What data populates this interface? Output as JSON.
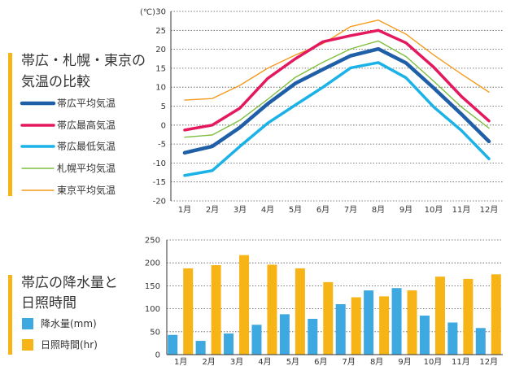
{
  "chart_data": [
    {
      "type": "line",
      "title_lines": [
        "帯広・札幌・東京の",
        "気温の比較"
      ],
      "unit_label": "(℃)",
      "categories": [
        "1月",
        "2月",
        "3月",
        "4月",
        "5月",
        "6月",
        "7月",
        "8月",
        "9月",
        "10月",
        "11月",
        "12月"
      ],
      "ylim": [
        -20,
        30
      ],
      "yticks": [
        -20,
        -15,
        -10,
        -5,
        0,
        5,
        10,
        15,
        20,
        25,
        30
      ],
      "grid": true,
      "legend_position": "left",
      "series": [
        {
          "name": "帯広平均気温",
          "color": "#1f5fa8",
          "values": [
            -7.3,
            -5.6,
            -0.6,
            5.6,
            11.0,
            14.7,
            18.3,
            20.1,
            16.4,
            9.8,
            2.9,
            -4.3
          ]
        },
        {
          "name": "帯広最高気温",
          "color": "#e4185e",
          "values": [
            -1.3,
            0.0,
            4.5,
            12.3,
            17.5,
            22.0,
            23.6,
            25.0,
            21.7,
            15.3,
            7.6,
            1.1
          ]
        },
        {
          "name": "帯広最低気温",
          "color": "#1bb2e8",
          "values": [
            -13.3,
            -12.0,
            -5.6,
            0.5,
            5.3,
            10.0,
            15.1,
            16.5,
            12.5,
            4.8,
            -1.4,
            -8.9
          ]
        },
        {
          "name": "札幌平均気温",
          "color": "#7fbf3f",
          "values": [
            -3.2,
            -2.6,
            1.3,
            6.8,
            12.6,
            16.6,
            20.1,
            22.2,
            18.1,
            11.6,
            4.8,
            -0.8
          ]
        },
        {
          "name": "東京平均気温",
          "color": "#f39c1f",
          "values": [
            6.6,
            7.0,
            10.5,
            15.0,
            18.5,
            21.5,
            26.0,
            27.7,
            24.0,
            18.5,
            13.5,
            8.7
          ]
        }
      ]
    },
    {
      "type": "bar",
      "title_lines": [
        "帯広の降水量と",
        "日照時間"
      ],
      "categories": [
        "1月",
        "2月",
        "3月",
        "4月",
        "5月",
        "6月",
        "7月",
        "8月",
        "9月",
        "10月",
        "11月",
        "12月"
      ],
      "ylim": [
        0,
        250
      ],
      "yticks": [
        0,
        50,
        100,
        150,
        200,
        250
      ],
      "grid": true,
      "legend_position": "left",
      "series": [
        {
          "name": "降水量(mm)",
          "color": "#3ea8e0",
          "values": [
            43,
            30,
            46,
            65,
            88,
            78,
            110,
            140,
            145,
            85,
            70,
            58
          ]
        },
        {
          "name": "日照時間(hr)",
          "color": "#f6b417",
          "values": [
            188,
            195,
            217,
            196,
            188,
            158,
            125,
            127,
            140,
            170,
            165,
            175
          ]
        }
      ]
    }
  ],
  "colors": {
    "title_accent": "#f6b417",
    "axis": "#333333"
  }
}
